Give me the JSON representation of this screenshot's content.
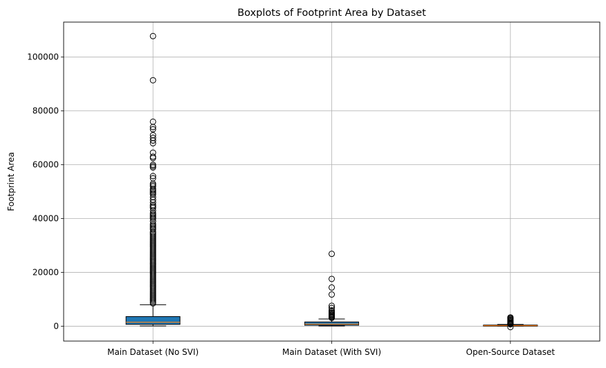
{
  "chart_data": {
    "type": "boxplot",
    "title": "Boxplots of Footprint Area by Dataset",
    "xlabel": "",
    "ylabel": "Footprint Area",
    "ylim": [
      -5500,
      113000
    ],
    "yticks": [
      0,
      20000,
      40000,
      60000,
      80000,
      100000
    ],
    "ytick_labels": [
      "0",
      "20000",
      "40000",
      "60000",
      "80000",
      "100000"
    ],
    "grid": true,
    "categories": [
      "Main Dataset (No SVI)",
      "Main Dataset (With SVI)",
      "Open-Source Dataset"
    ],
    "boxes": [
      {
        "name": "Main Dataset (No SVI)",
        "whisker_low": 100,
        "q1": 700,
        "median": 1500,
        "q3": 3600,
        "whisker_high": 8000,
        "fill": "#1f77b4",
        "outliers": [
          107800,
          91400,
          76000,
          74000,
          73200,
          71000,
          70000,
          69000,
          68000,
          64500,
          63000,
          62500,
          60000,
          59500,
          59000,
          55800,
          55000,
          53000,
          52500,
          52000,
          51000,
          50500,
          50000,
          49500,
          49000,
          48000,
          47000,
          46000,
          45000,
          44500,
          44000,
          43000,
          42000,
          41500,
          41000,
          40500,
          40000,
          39000,
          38000,
          37500,
          37000,
          36500,
          36000,
          35000,
          34500,
          34000,
          33500,
          33000,
          32500,
          32000,
          31500,
          31000,
          30500,
          30000,
          29500,
          29000,
          28500,
          28000,
          27500,
          27000,
          26500,
          26000,
          25500,
          25000,
          24500,
          24000,
          23500,
          23000,
          22500,
          22000,
          21500,
          21000,
          20500,
          20000,
          19500,
          19000,
          18500,
          18000,
          17500,
          17000,
          16500,
          16000,
          15500,
          15000,
          14500,
          14000,
          13500,
          13000,
          12500,
          12000,
          11500,
          11000,
          10500,
          10000,
          9500,
          9000,
          8500
        ]
      },
      {
        "name": "Main Dataset (With SVI)",
        "whisker_low": 100,
        "q1": 400,
        "median": 800,
        "q3": 1600,
        "whisker_high": 2700,
        "fill": "#1f77b4",
        "outliers": [
          26900,
          17600,
          14400,
          11800,
          7600,
          6800,
          5900,
          5400,
          5000,
          4600,
          4300,
          4000,
          3700,
          3400,
          3100
        ]
      },
      {
        "name": "Open-Source Dataset",
        "whisker_low": 50,
        "q1": 150,
        "median": 260,
        "q3": 450,
        "whisker_high": 700,
        "fill": "#1f77b4",
        "outliers": [
          3300,
          3000,
          2700,
          2400,
          2100,
          1800,
          1500,
          1300,
          1100,
          950,
          850,
          750,
          -300
        ]
      }
    ],
    "colors": {
      "box_fill": "#1f77b4",
      "median": "#ff7f0e",
      "grid": "#b0b0b0",
      "axis": "#000000"
    }
  }
}
